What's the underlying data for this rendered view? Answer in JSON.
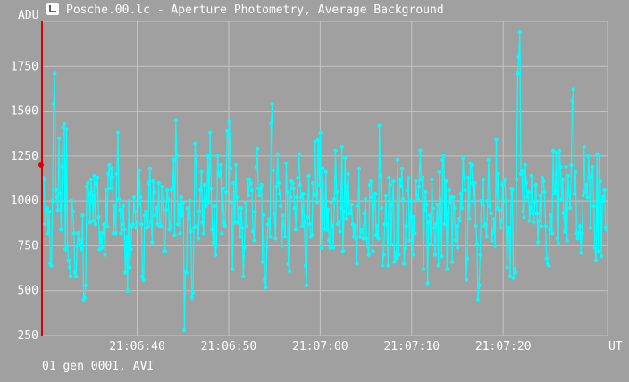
{
  "window": {
    "title": "Posche.00.lc - Aperture Photometry, Average Background"
  },
  "footer": {
    "text": "01 gen 0001, AVI"
  },
  "colors": {
    "background": "#a0a0a0",
    "series": "#00ffff",
    "grid": "#c4c4c4",
    "cursor": "#dd0000"
  },
  "icons": {
    "app": "chart-app-icon"
  },
  "chart_data": {
    "type": "line",
    "ylabel": "ADU",
    "xlabel": "UT",
    "ylim": [
      250,
      2000
    ],
    "y_ticks": [
      250,
      500,
      750,
      1000,
      1250,
      1500,
      1750
    ],
    "x_ticks": [
      "21:06:40",
      "21:06:50",
      "21:07:00",
      "21:07:10",
      "21:07:20"
    ],
    "x_range_seconds": [
      29.6,
      91.4
    ],
    "x_tick_seconds": [
      40,
      50,
      60,
      70,
      80
    ],
    "cursor_value": 1200,
    "grid": true,
    "series": [
      {
        "values": [
          1130,
          1120,
          870,
          950,
          960,
          820,
          940,
          650,
          640,
          1000,
          1540,
          1710,
          1060,
          1020,
          950,
          1350,
          1040,
          840,
          1190,
          1410,
          1430,
          730,
          1400,
          750,
          670,
          630,
          580,
          1000,
          940,
          820,
          600,
          580,
          750,
          820,
          780,
          760,
          730,
          920,
          450,
          460,
          530,
          1080,
          1100,
          1040,
          880,
          1120,
          1030,
          890,
          1140,
          870,
          1100,
          1130,
          910,
          730,
          820,
          740,
          820,
          870,
          700,
          1060,
          860,
          1150,
          1200,
          1070,
          1180,
          1130,
          820,
          970,
          820,
          1150,
          1380,
          1010,
          950,
          820,
          870,
          970,
          840,
          600,
          800,
          500,
          1000,
          630,
          730,
          860,
          870,
          1020,
          940,
          850,
          880,
          980,
          1170,
          1020,
          870,
          580,
          560,
          920,
          940,
          850,
          860,
          1100,
          1180,
          880,
          770,
          1110,
          1050,
          920,
          960,
          870,
          1100,
          860,
          860,
          1080,
          1000,
          720,
          720,
          950,
          1060,
          1010,
          840,
          860,
          1060,
          1070,
          1230,
          810,
          1450,
          1250,
          870,
          980,
          820,
          1020,
          920,
          990,
          280,
          610,
          600,
          960,
          900,
          1000,
          830,
          460,
          490,
          850,
          1320,
          1220,
          860,
          790,
          940,
          1060,
          1160,
          880,
          820,
          1090,
          970,
          1010,
          1250,
          990,
          1380,
          1070,
          840,
          770,
          970,
          700,
          750,
          1250,
          1150,
          1140,
          1200,
          820,
          1070,
          880,
          860,
          1050,
          1390,
          1360,
          1440,
          1180,
          990,
          620,
          1100,
          880,
          1200,
          1020,
          880,
          960,
          800,
          960,
          850,
          580,
          740,
          990,
          860,
          1120,
          1030,
          1120,
          1100,
          1060,
          830,
          780,
          940,
          1190,
          1290,
          1070,
          1030,
          1070,
          1090,
          660,
          920,
          560,
          520,
          750,
          870,
          900,
          800,
          1430,
          1540,
          1170,
          930,
          790,
          1080,
          1260,
          1100,
          1040,
          970,
          750,
          920,
          850,
          800,
          1210,
          1050,
          650,
          610,
          1020,
          1110,
          1100,
          1070,
          960,
          840,
          1020,
          1130,
          1260,
          1090,
          1020,
          860,
          1040,
          880,
          640,
          530,
          910,
          1140,
          870,
          800,
          810,
          1100,
          1030,
          1330,
          1040,
          990,
          1340,
          1090,
          1380,
          740,
          1180,
          950,
          840,
          1160,
          840,
          950,
          780,
          740,
          990,
          860,
          740,
          1010,
          1280,
          1050,
          870,
          880,
          830,
          960,
          1300,
          720,
          940,
          1240,
          900,
          1080,
          1150,
          930,
          930,
          980,
          870,
          800,
          860,
          790,
          650,
          970,
          1180,
          800,
          830,
          840,
          790,
          930,
          1010,
          790,
          750,
          700,
          1090,
          1110,
          1020,
          720,
          980,
          1040,
          810,
          860,
          790,
          1420,
          1140,
          960,
          640,
          700,
          870,
          1030,
          870,
          640,
          1130,
          1090,
          760,
          980,
          1110,
          660,
          710,
          680,
          1230,
          700,
          1120,
          1080,
          1180,
          1010,
          650,
          740,
          860,
          1060,
          1130,
          780,
          920,
          1000,
          700,
          910,
          820,
          1110,
          1030,
          1010,
          1080,
          1280,
          1120,
          1130,
          620,
          950,
          1050,
          980,
          540,
          880,
          920,
          760,
          1120,
          960,
          850,
          700,
          870,
          980,
          640,
          1160,
          1000,
          690,
          1230,
          1250,
          870,
          1110,
          620,
          930,
          1060,
          990,
          1020,
          660,
          1020,
          960,
          780,
          860,
          740,
          900,
          890,
          1040,
          960,
          1240,
          1130,
          1060,
          560,
          680,
          1130,
          900,
          1210,
          1200,
          1100,
          1000,
          1100,
          860,
          760,
          450,
          530,
          700,
          1000,
          980,
          1120,
          860,
          870,
          800,
          1000,
          1230,
          970,
          930,
          780,
          830,
          900,
          750,
          1340,
          960,
          1150,
          950,
          850,
          890,
          1090,
          1100,
          1120,
          1000,
          630,
          850,
          850,
          580,
          1070,
          1060,
          570,
          620,
          600,
          1120,
          1710,
          1800,
          1940,
          1150,
          1170,
          940,
          910,
          1200,
          1100,
          1020,
          1050,
          890,
          960,
          1140,
          930,
          880,
          990,
          1090,
          930,
          770,
          890,
          1030,
          860,
          1130,
          1110,
          1050,
          860,
          680,
          650,
          640,
          840,
          920,
          820,
          1280,
          1040,
          1050,
          1270,
          790,
          760,
          1280,
          1190,
          1010,
          1120,
          930,
          830,
          1190,
          780,
          1140,
          1030,
          960,
          1200,
          1560,
          1620,
          1040,
          1160,
          820,
          790,
          820,
          860,
          710,
          820,
          1030,
          1300,
          1050,
          1090,
          1020,
          1250,
          1130,
          850,
          1140,
          1190,
          970,
          740,
          670,
          1260,
          720,
          1250,
          1110,
          690,
          1000,
          1020,
          1060,
          850,
          840
        ]
      }
    ]
  }
}
